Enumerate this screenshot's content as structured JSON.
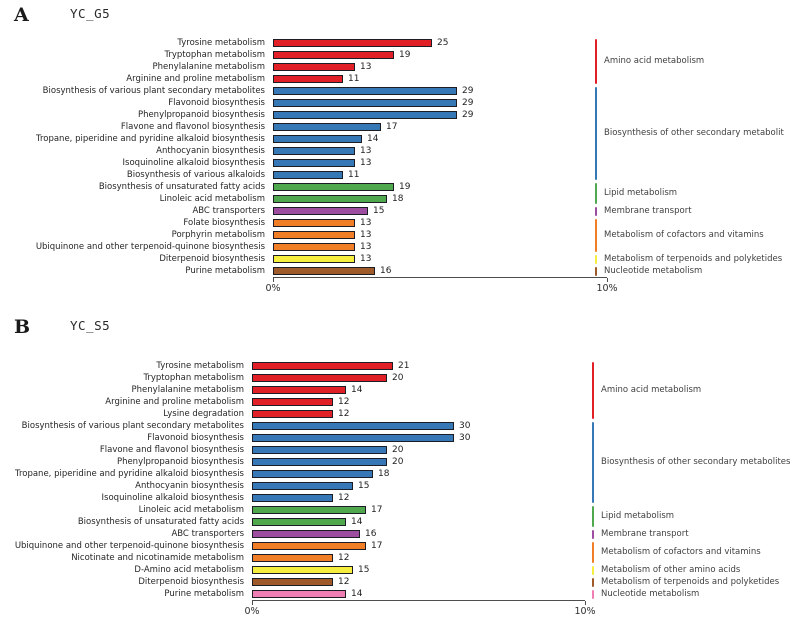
{
  "figure": {
    "background": "#ffffff"
  },
  "chart_data": [
    {
      "type": "bar",
      "panel_letter": "A",
      "title": "YC_G5",
      "orientation": "horizontal",
      "xlabel": "",
      "axis_ticks": [
        "0%",
        "10%"
      ],
      "axis_range_percent": [
        0,
        10
      ],
      "percent_per_count": 0.19,
      "grid": false,
      "legend_position": "right-group-labels",
      "groups": [
        {
          "name": "Amino acid metabolism",
          "color": "#e11f26",
          "items": [
            {
              "label": "Tyrosine metabolism",
              "value": 25
            },
            {
              "label": "Tryptophan metabolism",
              "value": 19
            },
            {
              "label": "Phenylalanine metabolism",
              "value": 13
            },
            {
              "label": "Arginine and proline metabolism",
              "value": 11
            }
          ]
        },
        {
          "name": "Biosynthesis of other secondary metabolit",
          "color": "#3578b5",
          "items": [
            {
              "label": "Biosynthesis of various plant secondary metabolites",
              "value": 29
            },
            {
              "label": "Flavonoid biosynthesis",
              "value": 29
            },
            {
              "label": "Phenylpropanoid biosynthesis",
              "value": 29
            },
            {
              "label": "Flavone and flavonol biosynthesis",
              "value": 17
            },
            {
              "label": "Tropane, piperidine and pyridine alkaloid biosynthesis",
              "value": 14
            },
            {
              "label": "Anthocyanin biosynthesis",
              "value": 13
            },
            {
              "label": "Isoquinoline alkaloid biosynthesis",
              "value": 13
            },
            {
              "label": "Biosynthesis of various alkaloids",
              "value": 11
            }
          ]
        },
        {
          "name": "Lipid metabolism",
          "color": "#4fa84e",
          "items": [
            {
              "label": "Biosynthesis of unsaturated fatty acids",
              "value": 19
            },
            {
              "label": "Linoleic acid metabolism",
              "value": 18
            }
          ]
        },
        {
          "name": "Membrane transport",
          "color": "#9c4d9f",
          "items": [
            {
              "label": "ABC transporters",
              "value": 15
            }
          ]
        },
        {
          "name": "Metabolism of cofactors and vitamins",
          "color": "#f07e26",
          "items": [
            {
              "label": "Folate biosynthesis",
              "value": 13
            },
            {
              "label": "Porphyrin metabolism",
              "value": 13
            },
            {
              "label": "Ubiquinone and other terpenoid-quinone biosynthesis",
              "value": 13
            }
          ]
        },
        {
          "name": "Metabolism of terpenoids and polyketides",
          "color": "#f5ee3f",
          "items": [
            {
              "label": "Diterpenoid biosynthesis",
              "value": 13
            }
          ]
        },
        {
          "name": "Nucleotide metabolism",
          "color": "#9e5a28",
          "items": [
            {
              "label": "Purine metabolism",
              "value": 16
            }
          ]
        }
      ]
    },
    {
      "type": "bar",
      "panel_letter": "B",
      "title": "YC_S5",
      "orientation": "horizontal",
      "xlabel": "",
      "axis_ticks": [
        "0%",
        "10%"
      ],
      "axis_range_percent": [
        0,
        10
      ],
      "percent_per_count": 0.202,
      "grid": false,
      "legend_position": "right-group-labels",
      "groups": [
        {
          "name": "Amino acid metabolism",
          "color": "#e11f26",
          "items": [
            {
              "label": "Tyrosine metabolism",
              "value": 21
            },
            {
              "label": "Tryptophan metabolism",
              "value": 20
            },
            {
              "label": "Phenylalanine metabolism",
              "value": 14
            },
            {
              "label": "Arginine and proline metabolism",
              "value": 12
            },
            {
              "label": "Lysine degradation",
              "value": 12
            }
          ]
        },
        {
          "name": "Biosynthesis of other secondary metabolites",
          "color": "#3578b5",
          "items": [
            {
              "label": "Biosynthesis of various plant secondary metabolites",
              "value": 30
            },
            {
              "label": "Flavonoid biosynthesis",
              "value": 30
            },
            {
              "label": "Flavone and flavonol biosynthesis",
              "value": 20
            },
            {
              "label": "Phenylpropanoid biosynthesis",
              "value": 20
            },
            {
              "label": "Tropane, piperidine and pyridine alkaloid biosynthesis",
              "value": 18
            },
            {
              "label": "Anthocyanin biosynthesis",
              "value": 15
            },
            {
              "label": "Isoquinoline alkaloid biosynthesis",
              "value": 12
            }
          ]
        },
        {
          "name": "Lipid metabolism",
          "color": "#4fa84e",
          "items": [
            {
              "label": "Linoleic acid metabolism",
              "value": 17
            },
            {
              "label": "Biosynthesis of unsaturated fatty acids",
              "value": 14
            }
          ]
        },
        {
          "name": "Membrane transport",
          "color": "#9c4d9f",
          "items": [
            {
              "label": "ABC transporters",
              "value": 16
            }
          ]
        },
        {
          "name": "Metabolism of cofactors and vitamins",
          "color": "#f07e26",
          "items": [
            {
              "label": "Ubiquinone and other terpenoid-quinone biosynthesis",
              "value": 17
            },
            {
              "label": "Nicotinate and nicotinamide metabolism",
              "value": 12
            }
          ]
        },
        {
          "name": "Metabolism of other amino acids",
          "color": "#f5ee3f",
          "items": [
            {
              "label": "D-Amino acid metabolism",
              "value": 15
            }
          ]
        },
        {
          "name": "Metabolism of terpenoids and polyketides",
          "color": "#9e5a28",
          "items": [
            {
              "label": "Diterpenoid biosynthesis",
              "value": 12
            }
          ]
        },
        {
          "name": "Nucleotide metabolism",
          "color": "#ef7eb5",
          "items": [
            {
              "label": "Purine metabolism",
              "value": 14
            }
          ]
        }
      ]
    }
  ]
}
